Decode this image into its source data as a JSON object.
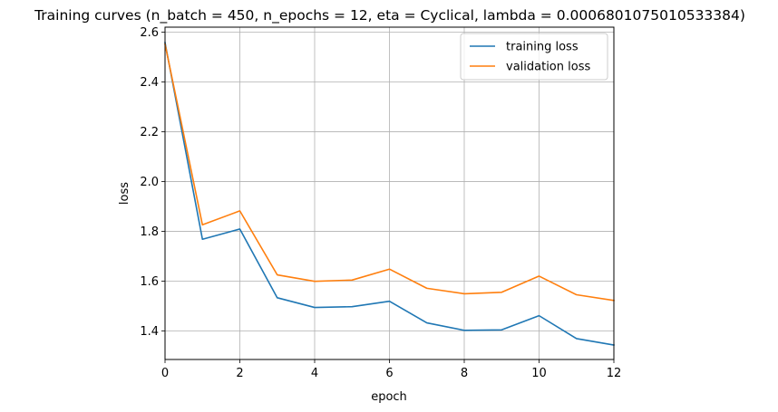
{
  "chart_data": {
    "type": "line",
    "title": "Training curves (n_batch = 450, n_epochs = 12, eta = Cyclical, lambda = 0.0006801075010533384)",
    "xlabel": "epoch",
    "ylabel": "loss",
    "xlim": [
      0,
      12
    ],
    "ylim": [
      1.285,
      2.62
    ],
    "xticks": [
      0,
      2,
      4,
      6,
      8,
      10,
      12
    ],
    "yticks": [
      1.4,
      1.6,
      1.8,
      2.0,
      2.2,
      2.4,
      2.6
    ],
    "xtick_labels": [
      "0",
      "2",
      "4",
      "6",
      "8",
      "10",
      "12"
    ],
    "ytick_labels": [
      "1.4",
      "1.6",
      "1.8",
      "2.0",
      "2.2",
      "2.4",
      "2.6"
    ],
    "grid": true,
    "legend_position": "top-right",
    "x": [
      0,
      1,
      2,
      3,
      4,
      5,
      6,
      7,
      8,
      9,
      10,
      11,
      12
    ],
    "series": [
      {
        "name": "training loss",
        "color": "#1f77b4",
        "values": [
          2.558,
          1.768,
          1.809,
          1.533,
          1.494,
          1.497,
          1.519,
          1.432,
          1.402,
          1.404,
          1.461,
          1.369,
          1.343
        ]
      },
      {
        "name": "validation loss",
        "color": "#ff7f0e",
        "values": [
          2.552,
          1.826,
          1.882,
          1.625,
          1.599,
          1.604,
          1.648,
          1.571,
          1.549,
          1.555,
          1.62,
          1.545,
          1.522
        ]
      }
    ]
  }
}
